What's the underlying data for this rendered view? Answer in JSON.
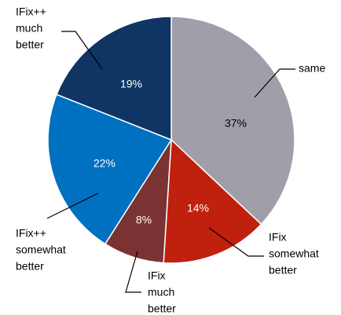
{
  "chart_data": {
    "type": "pie",
    "categories": [
      [
        "same"
      ],
      [
        "IFix",
        "somewhat",
        "better"
      ],
      [
        "IFix",
        "much",
        "better"
      ],
      [
        "IFix++",
        "somewhat",
        "better"
      ],
      [
        "IFix++",
        "much",
        "better"
      ]
    ],
    "values": [
      37,
      14,
      8,
      22,
      19
    ],
    "value_labels": [
      "37%",
      "14%",
      "8%",
      "22%",
      "19%"
    ],
    "colors": [
      "#a09fa9",
      "#c0200e",
      "#7b3232",
      "#0070c0",
      "#0e3563"
    ]
  }
}
